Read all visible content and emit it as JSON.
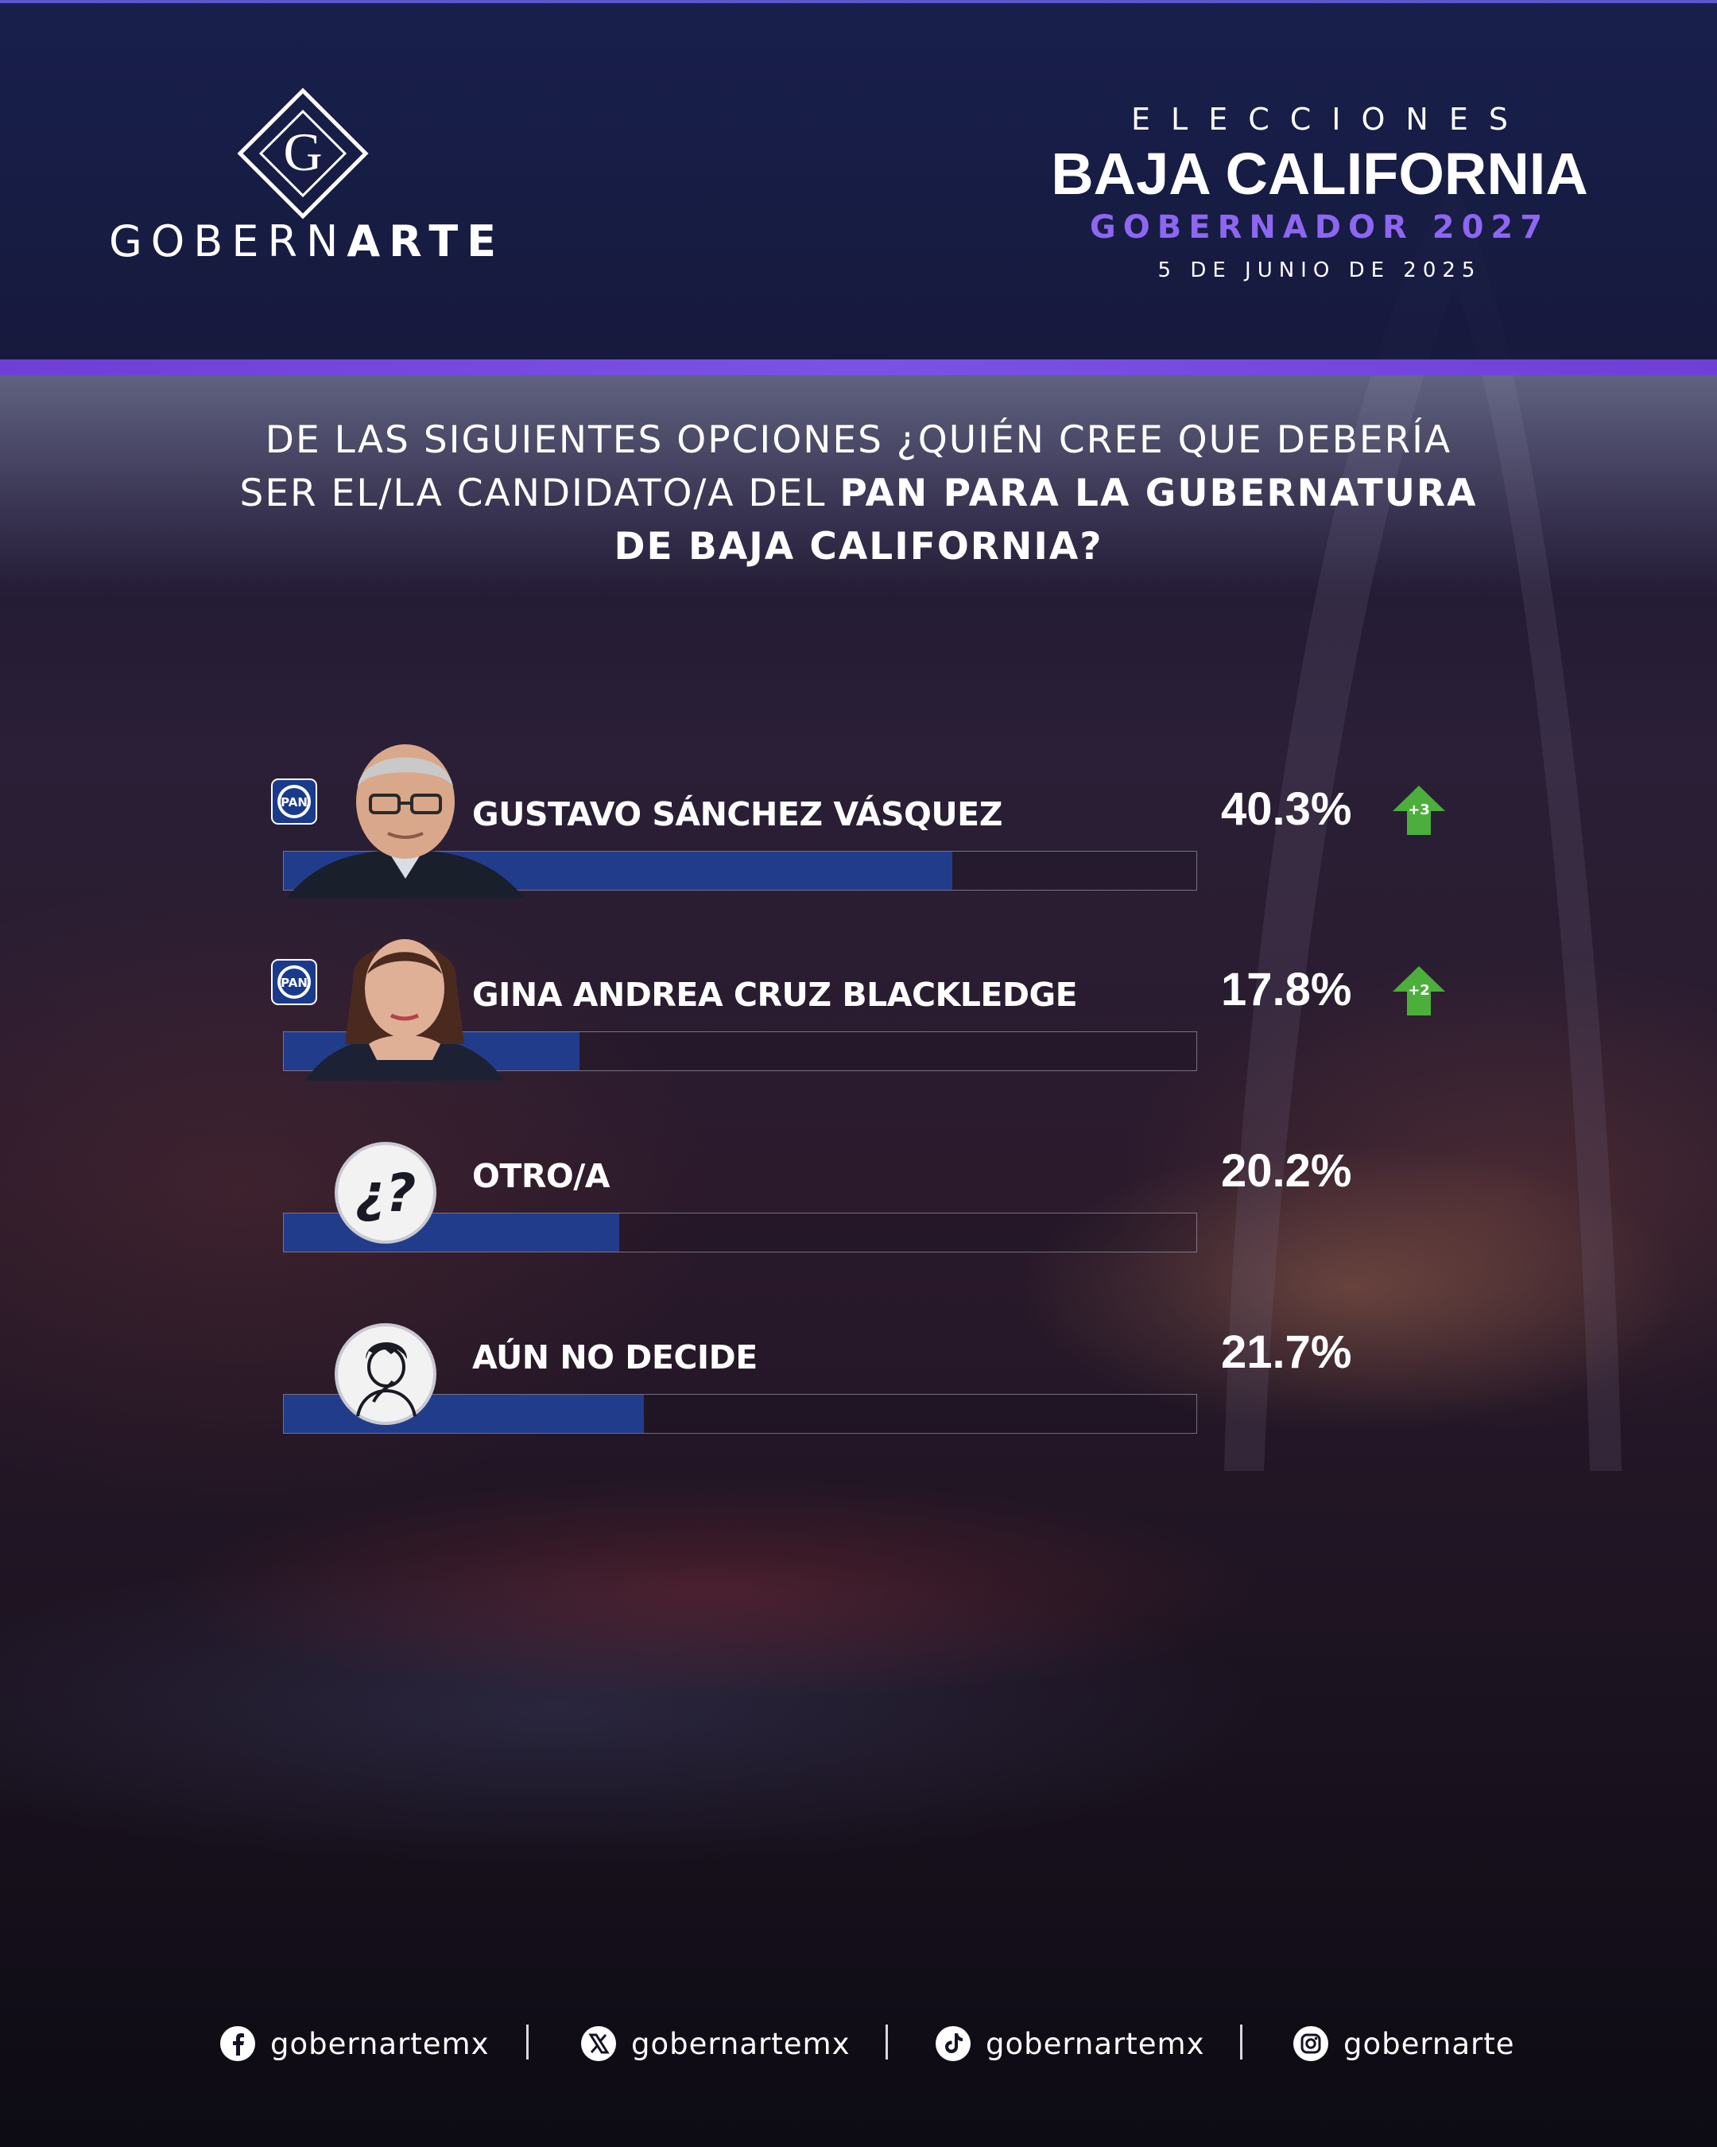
{
  "brand": {
    "pre": "GOBERN",
    "post": "ARTE",
    "logo_letter": "G"
  },
  "header": {
    "kicker": "ELECCIONES",
    "state": "BAJA CALIFORNIA",
    "office": "GOBERNADOR 2027",
    "date": "5 DE JUNIO DE 2025"
  },
  "question": {
    "part1": "DE LAS SIGUIENTES OPCIONES ¿QUIÉN CREE QUE DEBERÍA SER EL/LA CANDIDATO/A DEL ",
    "part2": "PAN PARA LA GUBERNATURA DE BAJA CALIFORNIA?"
  },
  "chart_data": {
    "type": "bar",
    "orientation": "horizontal",
    "categories": [
      "GUSTAVO SÁNCHEZ VÁSQUEZ",
      "GINA ANDREA CRUZ BLACKLEDGE",
      "OTRO/A",
      "AÚN NO DECIDE"
    ],
    "values": [
      40.3,
      17.8,
      20.2,
      21.7
    ],
    "value_labels": [
      "40.3%",
      "17.8%",
      "20.2%",
      "21.7%"
    ],
    "changes": [
      "+3",
      "+2",
      "",
      ""
    ],
    "party_badges": [
      "PAN",
      "PAN",
      "",
      ""
    ],
    "xlim": [
      0,
      55
    ],
    "bar_color": "#223c8c",
    "up_arrow_color": "#4caf3c"
  },
  "footer": {
    "facebook": "gobernartemx",
    "x": "gobernartemx",
    "tiktok": "gobernartemx",
    "instagram": "gobernarte"
  }
}
